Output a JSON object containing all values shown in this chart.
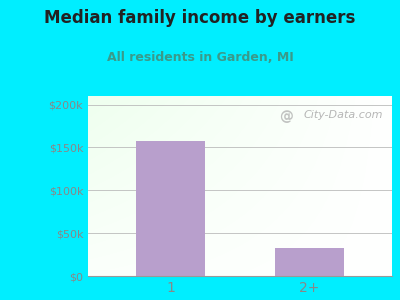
{
  "title": "Median family income by earners",
  "subtitle": "All residents in Garden, MI",
  "categories": [
    "1",
    "2+"
  ],
  "values": [
    157000,
    33000
  ],
  "bar_color": "#b89fcc",
  "outer_bg_color": "#00eeff",
  "title_color": "#222222",
  "subtitle_color": "#3a9a8a",
  "tick_color": "#888888",
  "ytick_labels": [
    "$0",
    "$50k",
    "$100k",
    "$150k",
    "$200k"
  ],
  "ytick_values": [
    0,
    50000,
    100000,
    150000,
    200000
  ],
  "ylim": [
    0,
    210000
  ],
  "watermark": "City-Data.com",
  "watermark_color": "#aaaaaa"
}
